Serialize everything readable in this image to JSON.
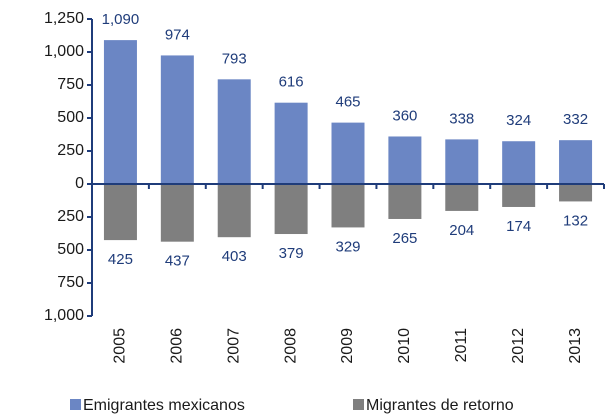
{
  "chart_data": {
    "type": "bar",
    "categories": [
      "2005",
      "2006",
      "2007",
      "2008",
      "2009",
      "2010",
      "2011",
      "2012",
      "2013"
    ],
    "series": [
      {
        "name": "Emigrantes mexicanos",
        "color": "#6b86c4",
        "values": [
          1090,
          974,
          793,
          616,
          465,
          360,
          338,
          324,
          332
        ],
        "value_labels": [
          "1,090",
          "974",
          "793",
          "616",
          "465",
          "360",
          "338",
          "324",
          "332"
        ]
      },
      {
        "name": "Migrantes de retorno",
        "color": "#7f7f7f",
        "values": [
          -425,
          -437,
          -403,
          -379,
          -329,
          -265,
          -204,
          -174,
          -132
        ],
        "value_labels": [
          "425",
          "437",
          "403",
          "379",
          "329",
          "265",
          "204",
          "174",
          "132"
        ]
      }
    ],
    "ylim": [
      -1000,
      1250
    ],
    "yticks": [
      {
        "value": 1250,
        "label": "1,250"
      },
      {
        "value": 1000,
        "label": "1,000"
      },
      750,
      500,
      250,
      0,
      {
        "value": -250,
        "label": "250"
      },
      {
        "value": -500,
        "label": "500"
      },
      {
        "value": -750,
        "label": "750"
      },
      {
        "value": -1000,
        "label": "1,000"
      }
    ],
    "grid": false
  }
}
